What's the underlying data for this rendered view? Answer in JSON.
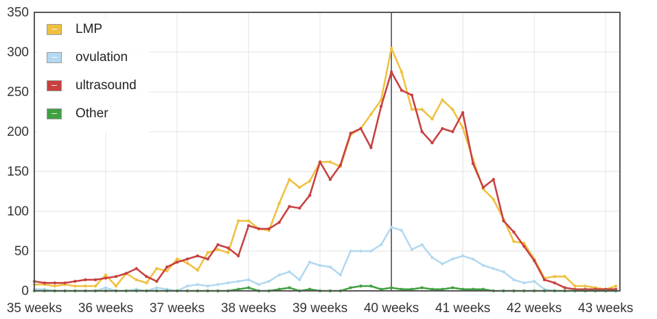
{
  "chart_data": {
    "type": "line",
    "xlim": [
      35,
      43.2
    ],
    "ylim": [
      0,
      350
    ],
    "x_ticks": [
      35,
      36,
      37,
      38,
      39,
      40,
      41,
      42,
      43
    ],
    "x_tick_labels": [
      "35 weeks",
      "36 weeks",
      "37 weeks",
      "38 weeks",
      "39 weeks",
      "40 weeks",
      "41 weeks",
      "42 weeks",
      "43 weeks"
    ],
    "y_ticks": [
      0,
      50,
      100,
      150,
      200,
      250,
      300,
      350
    ],
    "y_tick_labels": [
      "0",
      "50",
      "100",
      "150",
      "200",
      "250",
      "300",
      "350"
    ],
    "marker_x": 40,
    "legend_position": "top-left",
    "grid": true,
    "x": [
      35,
      35.143,
      35.286,
      35.429,
      35.571,
      35.714,
      35.857,
      36,
      36.143,
      36.286,
      36.429,
      36.571,
      36.714,
      36.857,
      37,
      37.143,
      37.286,
      37.429,
      37.571,
      37.714,
      37.857,
      38,
      38.143,
      38.286,
      38.429,
      38.571,
      38.714,
      38.857,
      39,
      39.143,
      39.286,
      39.429,
      39.571,
      39.714,
      39.857,
      40,
      40.143,
      40.286,
      40.429,
      40.571,
      40.714,
      40.857,
      41,
      41.143,
      41.286,
      41.429,
      41.571,
      41.714,
      41.857,
      42,
      42.143,
      42.286,
      42.429,
      42.571,
      42.714,
      42.857,
      43,
      43.143
    ],
    "series": [
      {
        "name": "LMP",
        "color": "#f0c040",
        "values": [
          8,
          8,
          6,
          8,
          6,
          6,
          6,
          20,
          6,
          22,
          14,
          10,
          28,
          25,
          40,
          35,
          26,
          48,
          52,
          48,
          88,
          88,
          78,
          76,
          110,
          140,
          130,
          138,
          162,
          162,
          156,
          196,
          204,
          222,
          240,
          305,
          275,
          228,
          228,
          216,
          240,
          228,
          205,
          165,
          128,
          115,
          90,
          62,
          60,
          40,
          16,
          18,
          18,
          6,
          6,
          4,
          2,
          6
        ]
      },
      {
        "name": "ovulation",
        "color": "#b3d9f0",
        "values": [
          2,
          2,
          0,
          0,
          0,
          0,
          0,
          4,
          0,
          0,
          2,
          0,
          4,
          2,
          0,
          6,
          8,
          6,
          8,
          10,
          12,
          14,
          8,
          12,
          20,
          24,
          14,
          36,
          32,
          30,
          20,
          50,
          50,
          50,
          58,
          80,
          76,
          52,
          58,
          42,
          34,
          40,
          44,
          40,
          32,
          28,
          24,
          14,
          10,
          12,
          2,
          0,
          0,
          0,
          0,
          0,
          0,
          0
        ]
      },
      {
        "name": "ultrasound",
        "color": "#c84040",
        "values": [
          12,
          10,
          10,
          10,
          12,
          14,
          14,
          16,
          18,
          22,
          28,
          18,
          12,
          30,
          36,
          40,
          44,
          40,
          58,
          54,
          44,
          82,
          78,
          78,
          86,
          106,
          104,
          120,
          162,
          140,
          158,
          198,
          204,
          180,
          232,
          275,
          252,
          246,
          200,
          186,
          204,
          200,
          224,
          160,
          130,
          140,
          88,
          74,
          56,
          38,
          14,
          10,
          4,
          2,
          2,
          2,
          2,
          2
        ]
      },
      {
        "name": "Other",
        "color": "#40a040",
        "values": [
          0,
          0,
          0,
          0,
          0,
          0,
          0,
          0,
          0,
          0,
          0,
          0,
          0,
          0,
          0,
          0,
          0,
          0,
          0,
          0,
          2,
          4,
          0,
          0,
          2,
          4,
          0,
          2,
          0,
          0,
          0,
          4,
          6,
          6,
          2,
          4,
          2,
          2,
          4,
          2,
          2,
          4,
          2,
          2,
          2,
          0,
          0,
          0,
          0,
          0,
          0,
          0,
          0,
          0,
          0,
          0,
          0,
          0
        ]
      }
    ]
  }
}
